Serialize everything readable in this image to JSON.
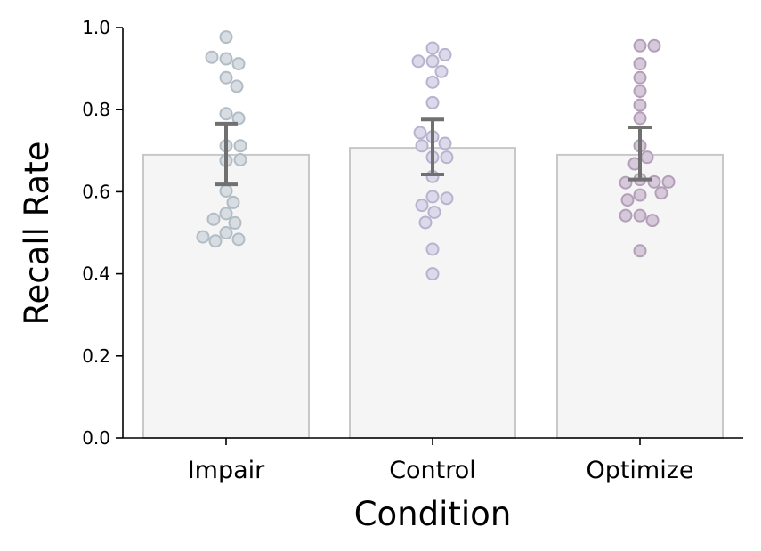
{
  "chart_data": {
    "type": "bar",
    "title": "",
    "xlabel": "Condition",
    "ylabel": "Recall Rate",
    "ylim": [
      0,
      1
    ],
    "yticks": [
      "0.0",
      "0.2",
      "0.4",
      "0.6",
      "0.8",
      "1.0"
    ],
    "grid": false,
    "categories": [
      "Impair",
      "Control",
      "Optimize"
    ],
    "values": [
      0.69,
      0.707,
      0.69
    ],
    "error_bars": [
      {
        "low": 0.618,
        "high": 0.766
      },
      {
        "low": 0.642,
        "high": 0.776
      },
      {
        "low": 0.63,
        "high": 0.757
      }
    ],
    "bar_color": "#f5f5f5",
    "bar_edge_color": "#c8c8c8",
    "error_color": "#707070",
    "point_colors": [
      "#d7dde3",
      "#dcdaea",
      "#d6c9da"
    ],
    "point_edge_colors": [
      "#b2bcc4",
      "#b7b3ce",
      "#b39fb8"
    ],
    "points": [
      [
        0.977,
        0.924,
        0.912,
        0.928,
        0.878,
        0.857,
        0.79,
        0.779,
        0.712,
        0.712,
        0.676,
        0.678,
        0.602,
        0.574,
        0.547,
        0.524,
        0.533,
        0.5,
        0.484,
        0.48,
        0.49
      ],
      [
        0.95,
        0.934,
        0.918,
        0.918,
        0.893,
        0.867,
        0.817,
        0.734,
        0.718,
        0.744,
        0.712,
        0.684,
        0.684,
        0.637,
        0.588,
        0.584,
        0.567,
        0.55,
        0.525,
        0.46,
        0.4
      ],
      [
        0.956,
        0.956,
        0.912,
        0.878,
        0.845,
        0.811,
        0.779,
        0.712,
        0.684,
        0.668,
        0.63,
        0.624,
        0.622,
        0.624,
        0.592,
        0.597,
        0.58,
        0.542,
        0.53,
        0.542,
        0.456
      ]
    ]
  }
}
